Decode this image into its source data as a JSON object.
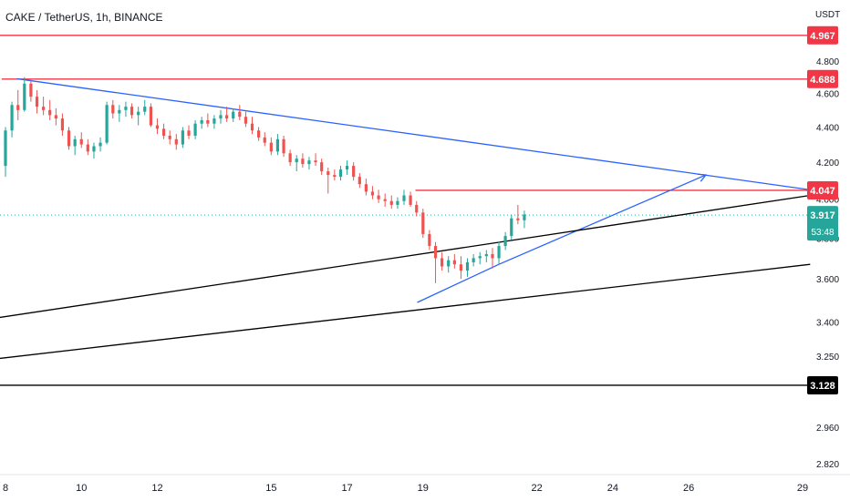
{
  "chart_data": {
    "type": "candlestick",
    "title": "CAKE / TetherUS, 1h, BINANCE",
    "y_unit": "USDT",
    "x_ticks": [
      "8",
      "10",
      "12",
      "15",
      "17",
      "19",
      "22",
      "24",
      "26",
      "29"
    ],
    "x_tick_days": [
      8,
      10,
      12,
      15,
      17,
      19,
      22,
      24,
      26,
      29
    ],
    "x_range_days": [
      7.8,
      29
    ],
    "y_ticks": [
      "4.800",
      "4.600",
      "4.400",
      "4.200",
      "4.000",
      "3.800",
      "3.600",
      "3.400",
      "3.250",
      "3.110",
      "2.960",
      "2.820"
    ],
    "y_tick_values": [
      4.8,
      4.6,
      4.4,
      4.2,
      4.0,
      3.8,
      3.6,
      3.4,
      3.25,
      3.11,
      2.96,
      2.82
    ],
    "y_range": [
      2.8,
      5.05
    ],
    "scale": "log",
    "last_price": {
      "label": "3.917",
      "value": 3.917,
      "countdown": "53:48",
      "color": "#26a69a"
    },
    "horizontal_levels": [
      {
        "label": "4.967",
        "value": 4.967,
        "color": "#f23645",
        "x_start_day": 7.8
      },
      {
        "label": "4.688",
        "value": 4.688,
        "color": "#f23645",
        "x_start_day": 7.9
      },
      {
        "label": "4.047",
        "value": 4.047,
        "color": "#f23645",
        "x_start_day": 18.8
      },
      {
        "label": "3.128",
        "value": 3.128,
        "color": "#000000",
        "x_start_day": 7.8
      }
    ],
    "trendlines": [
      {
        "name": "descending resistance",
        "color": "#2962ff",
        "points": [
          [
            8.3,
            4.69
          ],
          [
            29.2,
            4.05
          ]
        ]
      },
      {
        "name": "ascending support",
        "color": "#2962ff",
        "points": [
          [
            18.85,
            3.49
          ],
          [
            21.0,
            3.67
          ]
        ]
      },
      {
        "name": "projection arrow",
        "color": "#2962ff",
        "points": [
          [
            21.0,
            3.67
          ],
          [
            26.45,
            4.13
          ]
        ],
        "arrow": true
      },
      {
        "name": "upper channel",
        "color": "#000000",
        "points": [
          [
            7.8,
            3.42
          ],
          [
            29.2,
            4.02
          ]
        ]
      },
      {
        "name": "lower channel",
        "color": "#000000",
        "points": [
          [
            7.8,
            3.24
          ],
          [
            29.2,
            3.67
          ]
        ]
      }
    ],
    "up_color": "#26a69a",
    "down_color": "#ef5350",
    "candles": [
      [
        7.8,
        4.16,
        4.21,
        4.11,
        4.18
      ],
      [
        8.0,
        4.18,
        4.4,
        4.12,
        4.38
      ],
      [
        8.17,
        4.38,
        4.55,
        4.34,
        4.53
      ],
      [
        8.33,
        4.53,
        4.62,
        4.44,
        4.5
      ],
      [
        8.5,
        4.5,
        4.7,
        4.49,
        4.66
      ],
      [
        8.67,
        4.66,
        4.69,
        4.55,
        4.58
      ],
      [
        8.83,
        4.58,
        4.62,
        4.48,
        4.52
      ],
      [
        9.0,
        4.52,
        4.58,
        4.47,
        4.5
      ],
      [
        9.17,
        4.5,
        4.56,
        4.44,
        4.47
      ],
      [
        9.33,
        4.47,
        4.51,
        4.41,
        4.45
      ],
      [
        9.5,
        4.45,
        4.48,
        4.35,
        4.38
      ],
      [
        9.67,
        4.38,
        4.4,
        4.27,
        4.29
      ],
      [
        9.83,
        4.29,
        4.35,
        4.24,
        4.33
      ],
      [
        10.0,
        4.33,
        4.37,
        4.28,
        4.3
      ],
      [
        10.17,
        4.3,
        4.33,
        4.24,
        4.26
      ],
      [
        10.33,
        4.26,
        4.31,
        4.22,
        4.29
      ],
      [
        10.5,
        4.29,
        4.34,
        4.26,
        4.31
      ],
      [
        10.67,
        4.31,
        4.55,
        4.3,
        4.53
      ],
      [
        10.83,
        4.53,
        4.56,
        4.45,
        4.48
      ],
      [
        11.0,
        4.48,
        4.53,
        4.43,
        4.5
      ],
      [
        11.17,
        4.5,
        4.55,
        4.46,
        4.52
      ],
      [
        11.33,
        4.52,
        4.54,
        4.45,
        4.47
      ],
      [
        11.5,
        4.47,
        4.52,
        4.41,
        4.49
      ],
      [
        11.67,
        4.49,
        4.56,
        4.47,
        4.52
      ],
      [
        11.83,
        4.52,
        4.54,
        4.4,
        4.41
      ],
      [
        12.0,
        4.41,
        4.45,
        4.36,
        4.39
      ],
      [
        12.17,
        4.39,
        4.42,
        4.33,
        4.35
      ],
      [
        12.33,
        4.35,
        4.38,
        4.3,
        4.33
      ],
      [
        12.5,
        4.33,
        4.36,
        4.27,
        4.3
      ],
      [
        12.67,
        4.3,
        4.4,
        4.28,
        4.38
      ],
      [
        12.83,
        4.38,
        4.41,
        4.33,
        4.35
      ],
      [
        13.0,
        4.35,
        4.44,
        4.33,
        4.42
      ],
      [
        13.17,
        4.42,
        4.46,
        4.39,
        4.44
      ],
      [
        13.33,
        4.44,
        4.48,
        4.4,
        4.42
      ],
      [
        13.5,
        4.42,
        4.47,
        4.39,
        4.45
      ],
      [
        13.67,
        4.45,
        4.5,
        4.42,
        4.47
      ],
      [
        13.83,
        4.47,
        4.52,
        4.43,
        4.45
      ],
      [
        14.0,
        4.45,
        4.51,
        4.43,
        4.49
      ],
      [
        14.17,
        4.49,
        4.53,
        4.44,
        4.46
      ],
      [
        14.33,
        4.46,
        4.49,
        4.4,
        4.42
      ],
      [
        14.5,
        4.42,
        4.46,
        4.36,
        4.38
      ],
      [
        14.67,
        4.38,
        4.4,
        4.32,
        4.34
      ],
      [
        14.83,
        4.34,
        4.37,
        4.29,
        4.31
      ],
      [
        15.0,
        4.31,
        4.34,
        4.24,
        4.26
      ],
      [
        15.17,
        4.26,
        4.36,
        4.24,
        4.33
      ],
      [
        15.33,
        4.33,
        4.35,
        4.23,
        4.25
      ],
      [
        15.5,
        4.25,
        4.27,
        4.18,
        4.2
      ],
      [
        15.67,
        4.2,
        4.24,
        4.15,
        4.22
      ],
      [
        15.83,
        4.22,
        4.25,
        4.17,
        4.19
      ],
      [
        16.0,
        4.19,
        4.23,
        4.16,
        4.21
      ],
      [
        16.17,
        4.21,
        4.25,
        4.18,
        4.2
      ],
      [
        16.33,
        4.2,
        4.22,
        4.13,
        4.15
      ],
      [
        16.5,
        4.15,
        4.17,
        4.03,
        4.13
      ],
      [
        16.67,
        4.13,
        4.16,
        4.1,
        4.12
      ],
      [
        16.83,
        4.12,
        4.18,
        4.1,
        4.16
      ],
      [
        17.0,
        4.16,
        4.21,
        4.13,
        4.18
      ],
      [
        17.17,
        4.18,
        4.2,
        4.1,
        4.12
      ],
      [
        17.33,
        4.12,
        4.14,
        4.06,
        4.08
      ],
      [
        17.5,
        4.08,
        4.11,
        4.02,
        4.04
      ],
      [
        17.67,
        4.04,
        4.07,
        4.0,
        4.02
      ],
      [
        17.83,
        4.02,
        4.05,
        3.98,
        4.0
      ],
      [
        18.0,
        4.0,
        4.03,
        3.96,
        3.99
      ],
      [
        18.17,
        3.99,
        4.02,
        3.95,
        3.97
      ],
      [
        18.33,
        3.97,
        4.01,
        3.95,
        3.99
      ],
      [
        18.5,
        3.99,
        4.05,
        3.97,
        4.02
      ],
      [
        18.67,
        4.02,
        4.04,
        3.96,
        3.97
      ],
      [
        18.83,
        3.97,
        3.99,
        3.91,
        3.93
      ],
      [
        19.0,
        3.93,
        3.95,
        3.8,
        3.82
      ],
      [
        19.17,
        3.82,
        3.84,
        3.74,
        3.76
      ],
      [
        19.33,
        3.76,
        3.78,
        3.58,
        3.7
      ],
      [
        19.5,
        3.7,
        3.73,
        3.64,
        3.66
      ],
      [
        19.67,
        3.66,
        3.71,
        3.63,
        3.69
      ],
      [
        19.83,
        3.69,
        3.72,
        3.65,
        3.67
      ],
      [
        20.0,
        3.67,
        3.71,
        3.6,
        3.64
      ],
      [
        20.17,
        3.64,
        3.7,
        3.61,
        3.68
      ],
      [
        20.33,
        3.68,
        3.72,
        3.66,
        3.7
      ],
      [
        20.5,
        3.7,
        3.73,
        3.67,
        3.71
      ],
      [
        20.67,
        3.71,
        3.74,
        3.68,
        3.72
      ],
      [
        20.83,
        3.72,
        3.75,
        3.65,
        3.7
      ],
      [
        21.0,
        3.7,
        3.78,
        3.67,
        3.76
      ],
      [
        21.17,
        3.76,
        3.83,
        3.74,
        3.81
      ],
      [
        21.33,
        3.81,
        3.92,
        3.79,
        3.9
      ],
      [
        21.5,
        3.9,
        3.97,
        3.87,
        3.89
      ],
      [
        21.67,
        3.89,
        3.94,
        3.85,
        3.92
      ]
    ]
  }
}
